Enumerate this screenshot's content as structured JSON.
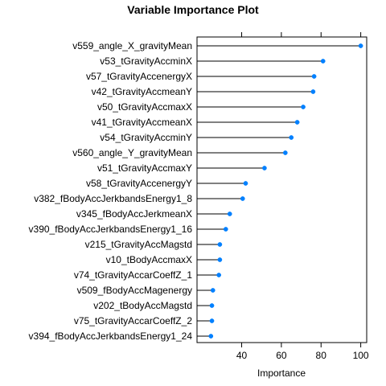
{
  "chart_data": {
    "type": "dotplot",
    "title": "Variable Importance Plot",
    "xlabel": "Importance",
    "ylabel": "",
    "xlim": [
      17.5,
      103
    ],
    "xticks": [
      40,
      60,
      80,
      100
    ],
    "xtick_labels": [
      "40",
      "60",
      "80",
      "100"
    ],
    "categories": [
      "v559_angle_X_gravityMean",
      "v53_tGravityAccminX",
      "v57_tGravityAccenergyX",
      "v42_tGravityAccmeanY",
      "v50_tGravityAccmaxX",
      "v41_tGravityAccmeanX",
      "v54_tGravityAccminY",
      "v560_angle_Y_gravityMean",
      "v51_tGravityAccmaxY",
      "v58_tGravityAccenergyY",
      "v382_fBodyAccJerkbandsEnergy1_8",
      "v345_fBodyAccJerkmeanX",
      "v390_fBodyAccJerkbandsEnergy1_16",
      "v215_tGravityAccMagstd",
      "v10_tBodyAccmaxX",
      "v74_tGravityAccarCoeffZ_1",
      "v509_fBodyAccMagenergy",
      "v202_tBodyAccMagstd",
      "v75_tGravityAccarCoeffZ_2",
      "v394_fBodyAccJerkbandsEnergy1_24"
    ],
    "values": [
      100,
      81,
      76.5,
      76,
      71,
      68,
      65,
      62,
      51.5,
      42,
      40.5,
      34,
      32,
      29,
      29,
      28.5,
      25.5,
      25,
      25,
      24.5
    ],
    "point_color": "#0080ff",
    "line_color": "#000000",
    "grid": false
  }
}
